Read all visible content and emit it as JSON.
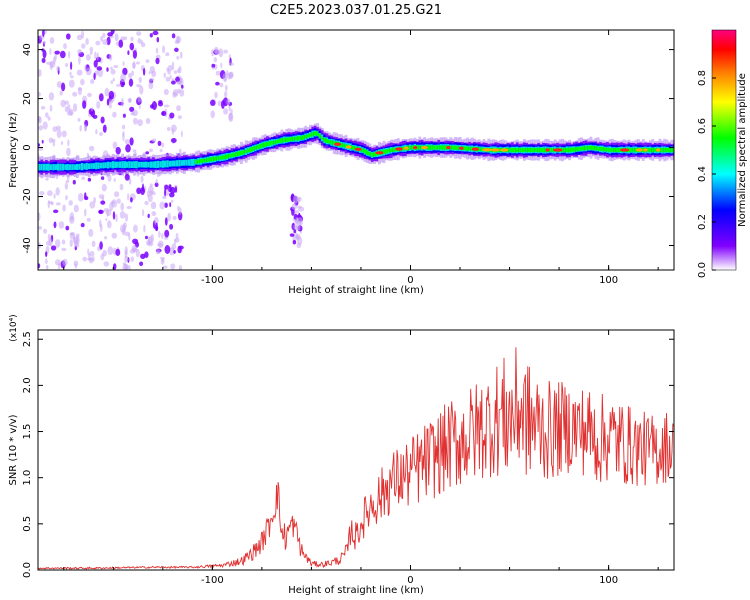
{
  "figure_title": "C2E5.2023.037.01.25.G21",
  "chart_data": [
    {
      "type": "heatmap",
      "title": "C2E5.2023.037.01.25.G21",
      "xlabel": "Height of straight line (km)",
      "ylabel": "Frequency (Hz)",
      "xlim": [
        -188,
        133
      ],
      "ylim": [
        -50,
        48
      ],
      "xticks": [
        -100,
        0,
        100
      ],
      "yticks": [
        -40,
        -20,
        0,
        20,
        40
      ],
      "colorbar": {
        "label": "Normalized spectral amplitude",
        "range": [
          0.0,
          1.0
        ],
        "ticks": [
          0.0,
          0.2,
          0.4,
          0.6,
          0.8
        ],
        "colormap": [
          "#ffffff",
          "#8000ff",
          "#0000ff",
          "#00ffff",
          "#00ff00",
          "#ffff00",
          "#ff8000",
          "#ff0000",
          "#ff0080"
        ]
      },
      "ridge": {
        "x": [
          -188,
          -170,
          -150,
          -130,
          -110,
          -95,
          -85,
          -75,
          -65,
          -55,
          -48,
          -44,
          -40,
          -35,
          -30,
          -25,
          -20,
          -15,
          -10,
          0,
          20,
          40,
          60,
          80,
          90,
          100,
          120,
          133
        ],
        "y": [
          -8,
          -8,
          -7,
          -7,
          -6,
          -4,
          -2,
          1,
          3,
          4,
          6,
          3,
          2,
          1,
          0,
          -1,
          -3,
          -2,
          -1,
          0,
          0,
          -1,
          -1,
          -1,
          0,
          -1,
          -1,
          -1
        ]
      },
      "scatter_bands": [
        {
          "x_range": [
            -188,
            -115
          ],
          "y_range": [
            -50,
            48
          ]
        },
        {
          "x_range": [
            -100,
            -90
          ],
          "y_range": [
            10,
            40
          ]
        },
        {
          "x_range": [
            -60,
            -55
          ],
          "y_range": [
            -40,
            -20
          ]
        }
      ]
    },
    {
      "type": "line",
      "xlabel": "Height of straight line (km)",
      "ylabel": "SNR (10 * v/v)",
      "yscale_label": "(x10⁴)",
      "xlim": [
        -188,
        133
      ],
      "ylim": [
        0,
        2.6
      ],
      "xticks": [
        -100,
        0,
        100
      ],
      "yticks": [
        0.0,
        0.5,
        1.0,
        1.5,
        2.0,
        2.5
      ],
      "series": [
        {
          "color": "#e03030",
          "x": [
            -188,
            -160,
            -130,
            -110,
            -95,
            -85,
            -80,
            -75,
            -72,
            -70,
            -67,
            -65,
            -63,
            -60,
            -58,
            -55,
            -50,
            -45,
            -40,
            -35,
            -32,
            -30,
            -28,
            -25,
            -20,
            -15,
            -10,
            -5,
            0,
            10,
            20,
            30,
            40,
            45,
            50,
            55,
            60,
            70,
            80,
            90,
            95,
            100,
            110,
            120,
            125,
            130,
            133
          ],
          "y": [
            0.02,
            0.02,
            0.03,
            0.03,
            0.05,
            0.1,
            0.18,
            0.3,
            0.45,
            0.6,
            0.85,
            0.4,
            0.35,
            0.5,
            0.45,
            0.2,
            0.07,
            0.06,
            0.08,
            0.12,
            0.2,
            0.45,
            0.35,
            0.5,
            0.7,
            0.8,
            0.95,
            1.0,
            1.05,
            1.2,
            1.35,
            1.45,
            1.6,
            1.65,
            1.65,
            1.75,
            1.6,
            1.5,
            1.55,
            1.5,
            1.4,
            1.45,
            1.35,
            1.3,
            1.3,
            1.35,
            1.3
          ],
          "noise_amplitude": [
            0.01,
            0.01,
            0.01,
            0.01,
            0.02,
            0.05,
            0.08,
            0.12,
            0.15,
            0.2,
            0.2,
            0.2,
            0.15,
            0.15,
            0.12,
            0.1,
            0.03,
            0.03,
            0.04,
            0.06,
            0.1,
            0.15,
            0.15,
            0.2,
            0.25,
            0.3,
            0.35,
            0.35,
            0.4,
            0.45,
            0.5,
            0.55,
            0.6,
            0.65,
            0.7,
            0.7,
            0.65,
            0.55,
            0.5,
            0.5,
            0.5,
            0.5,
            0.45,
            0.4,
            0.4,
            0.4,
            0.4
          ]
        }
      ]
    }
  ]
}
